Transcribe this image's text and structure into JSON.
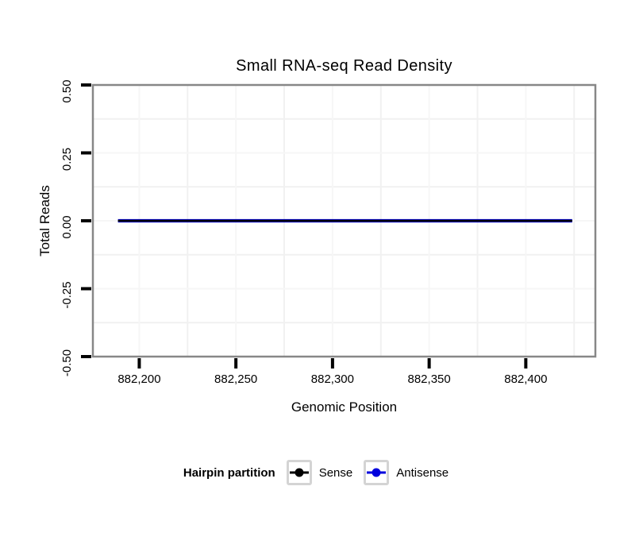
{
  "chart_data": {
    "type": "line",
    "title": "Small RNA-seq Read Density",
    "xlabel": "Genomic Position",
    "ylabel": "Total Reads",
    "xlim": [
      882176,
      882436
    ],
    "ylim": [
      -0.5,
      0.5
    ],
    "xticks": [
      882200,
      882250,
      882300,
      882350,
      882400
    ],
    "xtick_labels": [
      "882,200",
      "882,250",
      "882,300",
      "882,350",
      "882,400"
    ],
    "x_minor": [
      882225,
      882275,
      882325,
      882375,
      882425
    ],
    "yticks": [
      0.5,
      0.25,
      0,
      -0.25,
      -0.5
    ],
    "ytick_labels": [
      "0.50",
      "0.25",
      "0.00",
      "-0.25",
      "-0.50"
    ],
    "grid": "major and minor gridlines, very light gray, panel border gray",
    "series": [
      {
        "name": "Sense",
        "color": "#000000",
        "x": [
          882189,
          882424
        ],
        "y": [
          0,
          0
        ]
      },
      {
        "name": "Antisense",
        "color": "#0000dd",
        "x": [
          882189,
          882424
        ],
        "y": [
          0,
          0
        ]
      }
    ],
    "legend": {
      "title": "Hairpin partition",
      "position": "bottom",
      "entries": [
        {
          "label": "Sense",
          "color": "#000000"
        },
        {
          "label": "Antisense",
          "color": "#0000dd"
        }
      ]
    }
  },
  "colors": {
    "panel_border": "#878787",
    "tick_mark": "#000000",
    "grid_major": "#f6f6f6",
    "grid_minor": "#f1f1f1",
    "legend_key_border": "#d4d4d4"
  }
}
